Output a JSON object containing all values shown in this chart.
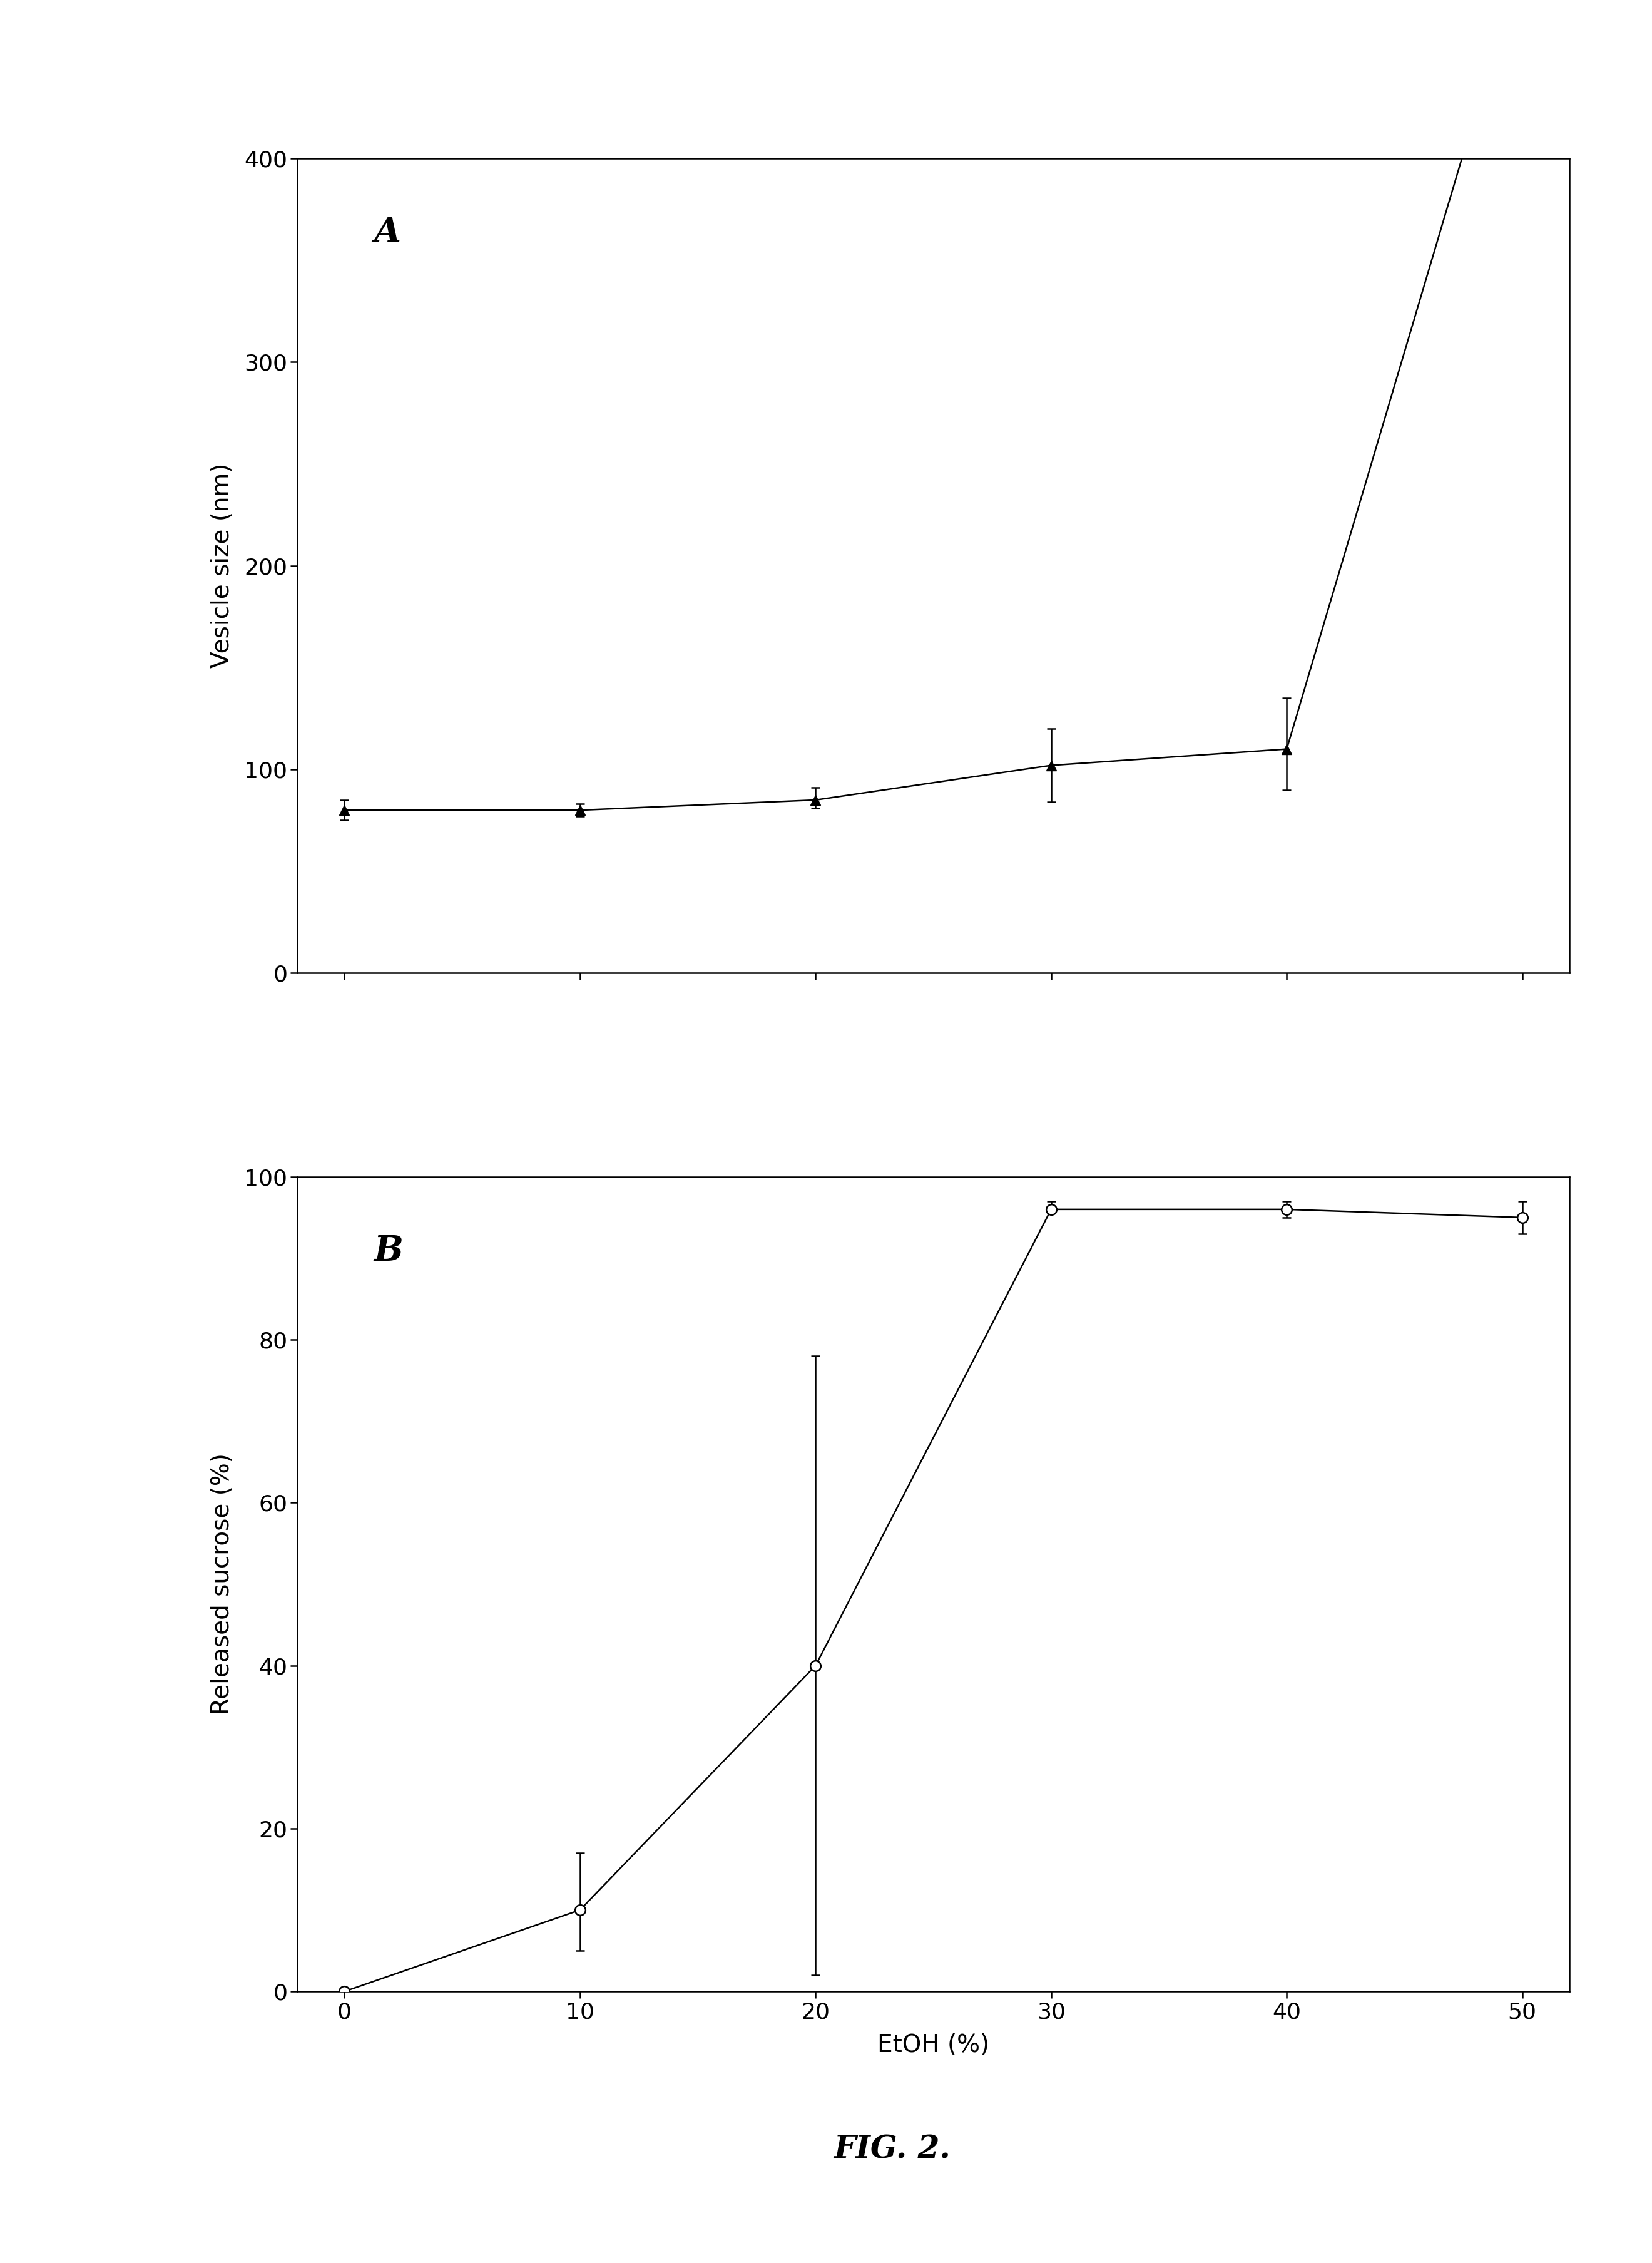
{
  "panel_A": {
    "label": "A",
    "x": [
      0,
      10,
      20,
      30,
      40,
      50
    ],
    "y": [
      80,
      80,
      85,
      102,
      110,
      500
    ],
    "yerr_low": [
      5,
      3,
      4,
      18,
      20,
      0
    ],
    "yerr_high": [
      5,
      3,
      6,
      18,
      25,
      0
    ],
    "ylabel": "Vesicle size (nm)",
    "ylim": [
      0,
      400
    ],
    "yticks": [
      0,
      100,
      200,
      300,
      400
    ],
    "xlim": [
      -2,
      52
    ],
    "marker": "^",
    "marker_size": 12,
    "marker_color": "black",
    "line_color": "black",
    "line_width": 1.8
  },
  "panel_B": {
    "label": "B",
    "x": [
      0,
      10,
      20,
      30,
      40,
      50
    ],
    "y": [
      0,
      10,
      40,
      96,
      96,
      95
    ],
    "yerr_low": [
      0,
      5,
      38,
      0,
      1,
      2
    ],
    "yerr_high": [
      0,
      7,
      38,
      1,
      1,
      2
    ],
    "ylabel": "Released sucrose (%)",
    "xlabel": "EtOH (%)",
    "ylim": [
      0,
      100
    ],
    "yticks": [
      0,
      20,
      40,
      60,
      80,
      100
    ],
    "xlim": [
      -2,
      52
    ],
    "xticks": [
      0,
      10,
      20,
      30,
      40,
      50
    ],
    "marker": "o",
    "marker_size": 12,
    "marker_color": "white",
    "marker_edge_color": "black",
    "line_color": "black",
    "line_width": 1.8
  },
  "figure_label": "FIG. 2.",
  "bg_color": "white",
  "text_color": "black",
  "figure_label_fontsize": 36,
  "axis_label_fontsize": 28,
  "tick_fontsize": 26,
  "panel_label_fontsize": 40
}
